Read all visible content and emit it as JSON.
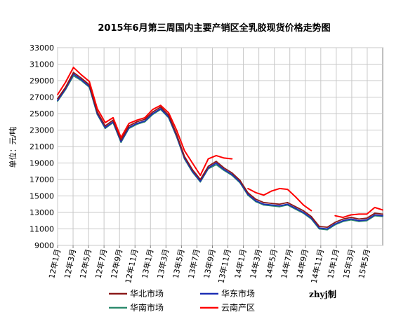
{
  "chart_data": {
    "type": "line",
    "title": "2015年6月第三周国内主要产销区全乳胶现货价格走势图",
    "ylabel": "单位：元/吨",
    "xlabel": "",
    "ylim": [
      9000,
      33000
    ],
    "yticks": [
      "33000",
      "31000",
      "29000",
      "27000",
      "25000",
      "23000",
      "21000",
      "19000",
      "17000",
      "15000",
      "13000",
      "11000",
      "9000"
    ],
    "xticks": [
      "12年1月",
      "12年3月",
      "12年5月",
      "12年7月",
      "12年9月",
      "12年11月",
      "13年1月",
      "13年3月",
      "13年5月",
      "13年7月",
      "13年9月",
      "13年11月",
      "14年1月",
      "14年3月",
      "14年5月",
      "14年7月",
      "14年9月",
      "14年11月",
      "15年1月",
      "15年3月",
      "15年5月"
    ],
    "grid": true,
    "legend_position": "bottom",
    "x": [
      "12年1月",
      "12年2月",
      "12年3月",
      "12年4月",
      "12年5月",
      "12年6月",
      "12年7月",
      "12年8月",
      "12年9月",
      "12年10月",
      "12年11月",
      "12年12月",
      "13年1月",
      "13年2月",
      "13年3月",
      "13年4月",
      "13年5月",
      "13年6月",
      "13年7月",
      "13年8月",
      "13年9月",
      "13年10月",
      "13年11月",
      "13年12月",
      "14年1月",
      "14年2月",
      "14年3月",
      "14年4月",
      "14年5月",
      "14年6月",
      "14年7月",
      "14年8月",
      "14年9月",
      "14年10月",
      "14年11月",
      "14年12月",
      "15年1月",
      "15年2月",
      "15年3月",
      "15年4月",
      "15年5月",
      "15年6月"
    ],
    "series": [
      {
        "name": "华北市场",
        "color": "#8B1A1A",
        "values": [
          26800,
          28200,
          30000,
          29300,
          28500,
          25200,
          23500,
          24200,
          21800,
          23500,
          24000,
          24300,
          25200,
          25800,
          24800,
          22500,
          19800,
          18200,
          17000,
          18600,
          19200,
          18400,
          17800,
          16900,
          15400,
          14600,
          14200,
          14100,
          14000,
          14200,
          13700,
          13200,
          12500,
          11300,
          11200,
          11800,
          12200,
          12400,
          12200,
          12300,
          12900,
          12800
        ]
      },
      {
        "name": "华东市场",
        "color": "#1E2FB4",
        "values": [
          26600,
          28000,
          29800,
          29100,
          28300,
          25000,
          23300,
          24000,
          21600,
          23300,
          23800,
          24100,
          25000,
          25600,
          24600,
          22300,
          19600,
          18000,
          16800,
          18400,
          19000,
          18200,
          17600,
          16700,
          15200,
          14400,
          14000,
          13900,
          13800,
          14000,
          13500,
          13000,
          12300,
          11100,
          11000,
          11600,
          12000,
          12200,
          12000,
          12100,
          12700,
          12600
        ]
      },
      {
        "name": "华南市场",
        "color": "#2E8B6E",
        "values": [
          26500,
          27900,
          29600,
          29000,
          28200,
          24900,
          23200,
          23900,
          21500,
          23200,
          23700,
          24000,
          24900,
          25500,
          24500,
          22200,
          19500,
          17900,
          16700,
          18300,
          18800,
          18100,
          17500,
          16600,
          15100,
          14300,
          13900,
          13800,
          13700,
          13900,
          13400,
          12900,
          12200,
          11000,
          10900,
          11500,
          11900,
          12100,
          11900,
          12000,
          12600,
          12500
        ]
      },
      {
        "name": "云南产区",
        "color": "#FF0000",
        "values": [
          27300,
          28800,
          30600,
          29700,
          28900,
          25600,
          23900,
          24500,
          22100,
          23800,
          24200,
          24500,
          25500,
          26000,
          25100,
          23000,
          20500,
          19000,
          17500,
          19500,
          19900,
          19600,
          19500,
          null,
          15900,
          15400,
          15100,
          15600,
          15900,
          15800,
          14900,
          13900,
          13200,
          null,
          null,
          12600,
          12400,
          12700,
          12800,
          12800,
          13600,
          13300
        ]
      }
    ],
    "credit": "zhyj制"
  }
}
